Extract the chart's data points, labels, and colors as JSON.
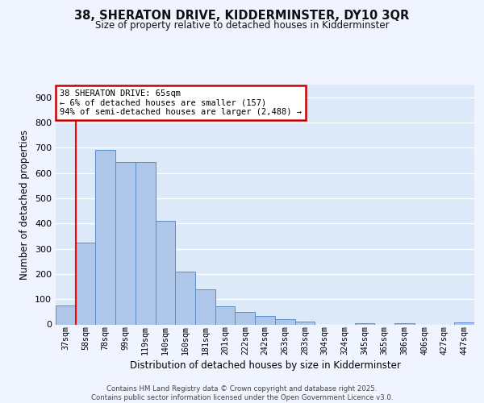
{
  "title1": "38, SHERATON DRIVE, KIDDERMINSTER, DY10 3QR",
  "title2": "Size of property relative to detached houses in Kidderminster",
  "xlabel": "Distribution of detached houses by size in Kidderminster",
  "ylabel": "Number of detached properties",
  "categories": [
    "37sqm",
    "58sqm",
    "78sqm",
    "99sqm",
    "119sqm",
    "140sqm",
    "160sqm",
    "181sqm",
    "201sqm",
    "222sqm",
    "242sqm",
    "263sqm",
    "283sqm",
    "304sqm",
    "324sqm",
    "345sqm",
    "365sqm",
    "386sqm",
    "406sqm",
    "427sqm",
    "447sqm"
  ],
  "values": [
    75,
    325,
    690,
    645,
    645,
    410,
    210,
    140,
    72,
    48,
    35,
    20,
    12,
    0,
    0,
    5,
    0,
    5,
    0,
    0,
    8
  ],
  "bar_color": "#aec6e8",
  "bar_edge_color": "#5b8fc9",
  "red_line_x": 1,
  "annotation_text": "38 SHERATON DRIVE: 65sqm\n← 6% of detached houses are smaller (157)\n94% of semi-detached houses are larger (2,488) →",
  "annotation_box_color": "#ffffff",
  "annotation_box_edge": "#cc0000",
  "background_color": "#dce9f8",
  "grid_color": "#ffffff",
  "footer_text": "Contains HM Land Registry data © Crown copyright and database right 2025.\nContains public sector information licensed under the Open Government Licence v3.0.",
  "ylim": [
    0,
    950
  ],
  "yticks": [
    0,
    100,
    200,
    300,
    400,
    500,
    600,
    700,
    800,
    900
  ]
}
